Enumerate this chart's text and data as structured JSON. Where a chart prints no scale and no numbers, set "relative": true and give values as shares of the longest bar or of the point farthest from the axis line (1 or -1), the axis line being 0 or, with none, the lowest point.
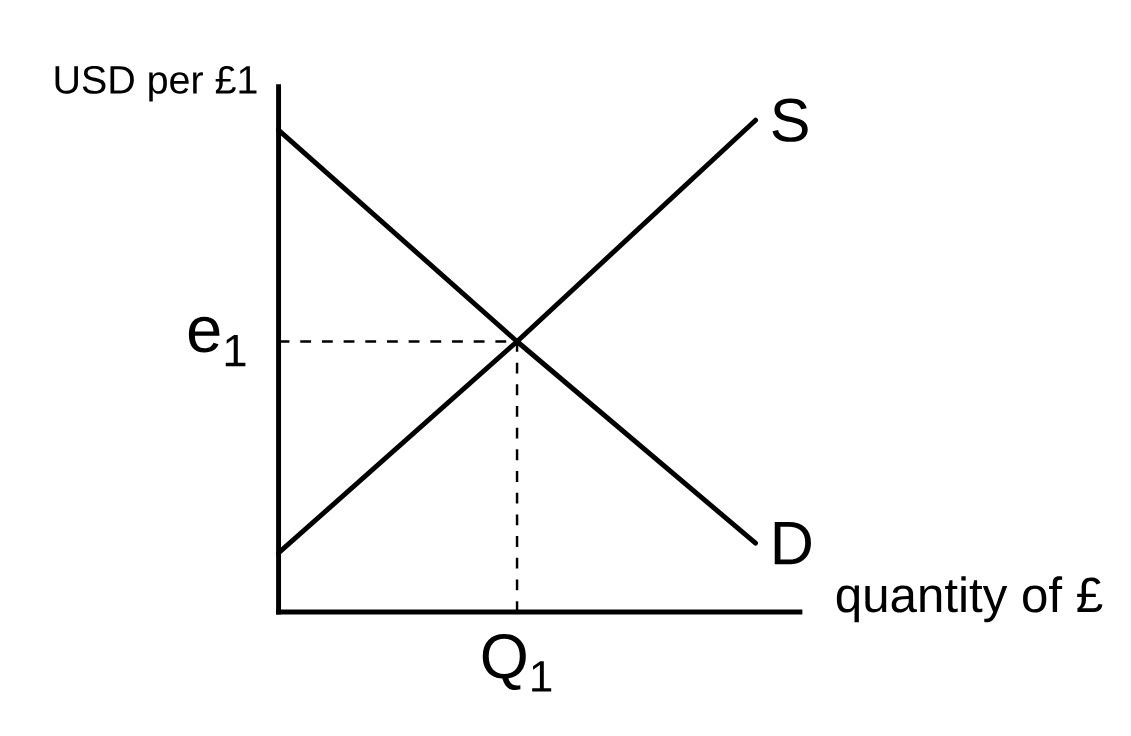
{
  "chart_data": {
    "type": "line",
    "relative": true,
    "xlabel": "quantity of £",
    "ylabel": "USD per £1",
    "categories": [
      null,
      null,
      null
    ],
    "series": [
      {
        "name": "S",
        "color": "#000000",
        "values": [
          0.12,
          0.55,
          1
        ]
      },
      {
        "name": "D",
        "color": "#000000",
        "values": [
          0.98,
          0.55,
          0.14
        ]
      }
    ],
    "ref_lines": [
      {
        "axis": "y",
        "value": 0.55,
        "label": "e$_{1}$",
        "color": "#000000",
        "line_style": "dashed"
      }
    ],
    "annotations": [
      "Q$_{1}$"
    ]
  }
}
